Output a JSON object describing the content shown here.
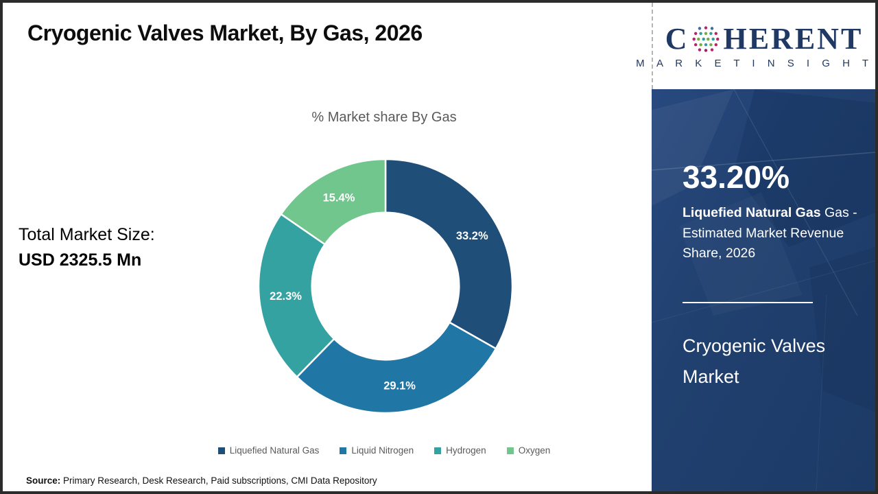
{
  "header": {
    "title": "Cryogenic Valves Market, By Gas, 2026"
  },
  "logo": {
    "name_prefix": "C",
    "name_suffix": "HERENT",
    "subtitle": "M A R K E T   I N S I G H T S"
  },
  "left_panel": {
    "label": "Total Market Size:",
    "value": "USD 2325.5 Mn"
  },
  "chart_data": {
    "type": "pie",
    "subtype": "donut",
    "title": "% Market share By Gas",
    "categories": [
      "Liquefied Natural Gas",
      "Liquid Nitrogen",
      "Hydrogen",
      "Oxygen"
    ],
    "values": [
      33.2,
      29.1,
      22.3,
      15.4
    ],
    "colors": [
      "#1f4e79",
      "#2077a6",
      "#35a2a2",
      "#70c68c"
    ],
    "data_label_format": "one-decimal-percent",
    "start_angle_deg": 0,
    "direction": "clockwise",
    "inner_radius_ratio": 0.58,
    "legend_position": "bottom",
    "label_text_color": "#ffffff"
  },
  "sidebar": {
    "stat_value": "33.20%",
    "stat_label_bold": "Liquefied Natural Gas",
    "stat_label_rest": " Gas - Estimated Market Revenue Share, 2026",
    "market_name": "Cryogenic Valves Market",
    "background_color": "#1e3a68"
  },
  "footer": {
    "source_label": "Source:",
    "source_text": " Primary Research, Desk Research, Paid subscriptions, CMI Data Repository"
  }
}
